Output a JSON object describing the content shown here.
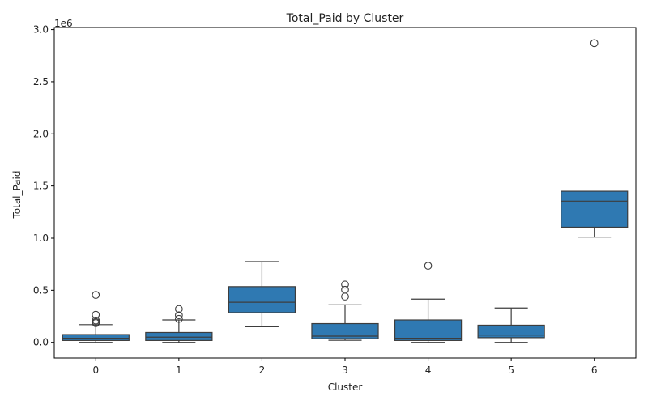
{
  "chart_data": {
    "type": "box",
    "title": "Total_Paid by Cluster",
    "xlabel": "Cluster",
    "ylabel": "Total_Paid",
    "offset_text": "1e6",
    "y_tick_labels": [
      "0.0",
      "0.5",
      "1.0",
      "1.5",
      "2.0",
      "2.5",
      "3.0"
    ],
    "ylim": [
      -0.15,
      3.02
    ],
    "y_scale": 1000000,
    "grid": false,
    "box_color": "#2f79b2",
    "line_color": "#3d3d3d",
    "categories": [
      "0",
      "1",
      "2",
      "3",
      "4",
      "5",
      "6"
    ],
    "boxes": [
      {
        "cluster": "0",
        "whisker_low": 0.0,
        "q1": 0.018,
        "median": 0.04,
        "q3": 0.075,
        "whisker_high": 0.17,
        "outliers": [
          0.455,
          0.265,
          0.21,
          0.195,
          0.185
        ]
      },
      {
        "cluster": "1",
        "whisker_low": 0.0,
        "q1": 0.018,
        "median": 0.05,
        "q3": 0.095,
        "whisker_high": 0.215,
        "outliers": [
          0.32,
          0.26,
          0.225
        ]
      },
      {
        "cluster": "2",
        "whisker_low": 0.15,
        "q1": 0.285,
        "median": 0.385,
        "q3": 0.535,
        "whisker_high": 0.775,
        "outliers": []
      },
      {
        "cluster": "3",
        "whisker_low": 0.02,
        "q1": 0.035,
        "median": 0.06,
        "q3": 0.18,
        "whisker_high": 0.36,
        "outliers": [
          0.555,
          0.505,
          0.44
        ]
      },
      {
        "cluster": "4",
        "whisker_low": 0.0,
        "q1": 0.018,
        "median": 0.04,
        "q3": 0.215,
        "whisker_high": 0.415,
        "outliers": [
          0.735
        ]
      },
      {
        "cluster": "5",
        "whisker_low": 0.0,
        "q1": 0.045,
        "median": 0.07,
        "q3": 0.165,
        "whisker_high": 0.33,
        "outliers": []
      },
      {
        "cluster": "6",
        "whisker_low": 1.01,
        "q1": 1.105,
        "median": 1.355,
        "q3": 1.45,
        "whisker_high": 1.45,
        "outliers": [
          2.87
        ]
      }
    ]
  }
}
